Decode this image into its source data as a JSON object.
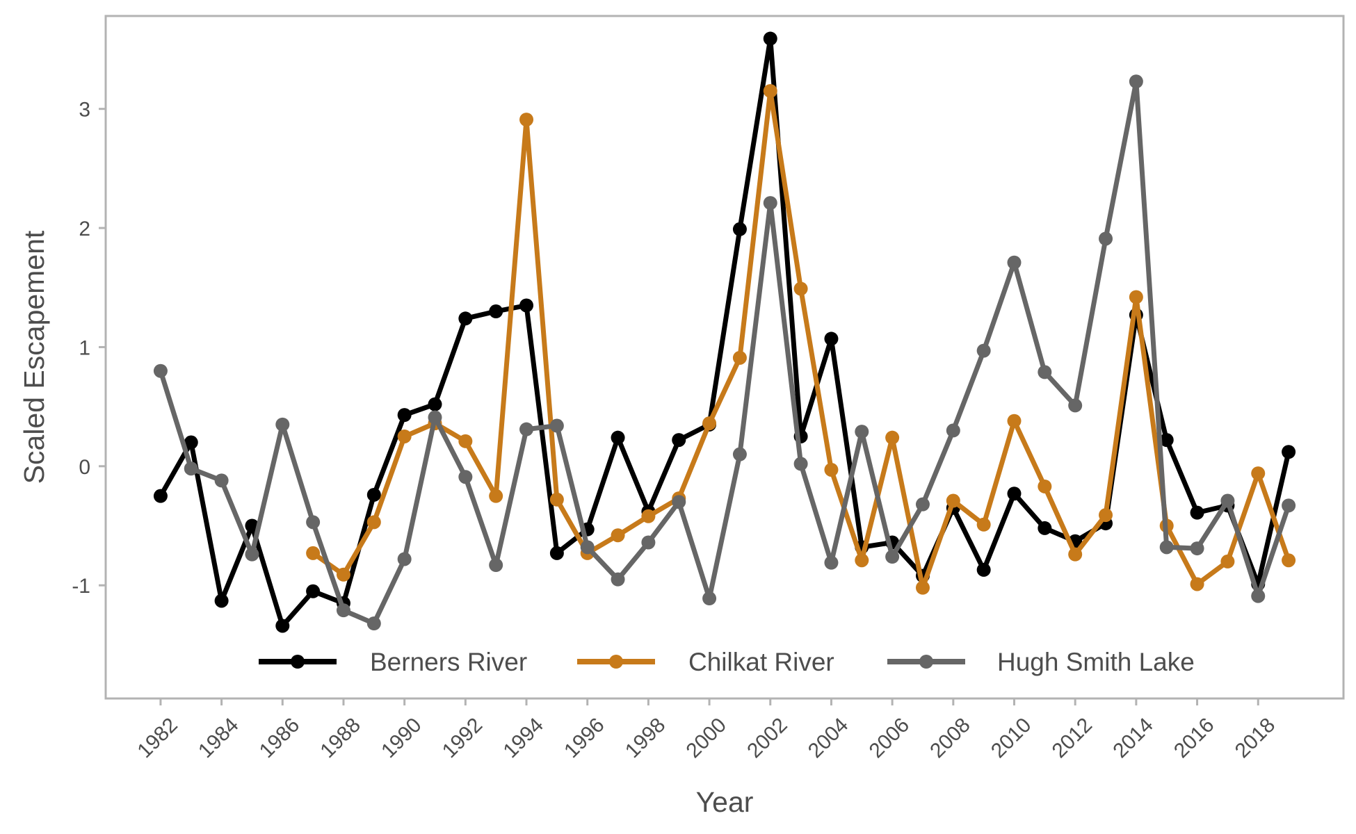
{
  "chart_data": {
    "type": "line",
    "title": "",
    "xlabel": "Year",
    "ylabel": "Scaled Escapement",
    "xlim": [
      1980.2,
      2020.8
    ],
    "ylim": [
      -1.95,
      3.78
    ],
    "x": [
      1982,
      1983,
      1984,
      1985,
      1986,
      1987,
      1988,
      1989,
      1990,
      1991,
      1992,
      1993,
      1994,
      1995,
      1996,
      1997,
      1998,
      1999,
      2000,
      2001,
      2002,
      2003,
      2004,
      2005,
      2006,
      2007,
      2008,
      2009,
      2010,
      2011,
      2012,
      2013,
      2014,
      2015,
      2016,
      2017,
      2018,
      2019
    ],
    "x_ticks": [
      1982,
      1984,
      1986,
      1988,
      1990,
      1992,
      1994,
      1996,
      1998,
      2000,
      2002,
      2004,
      2006,
      2008,
      2010,
      2012,
      2014,
      2016,
      2018
    ],
    "y_ticks": [
      -1,
      0,
      1,
      2,
      3
    ],
    "grid": false,
    "legend_position": "bottom-inside",
    "series": [
      {
        "name": "Berners River",
        "color": "#000000",
        "values": [
          -0.25,
          0.2,
          -1.13,
          -0.5,
          -1.34,
          -1.05,
          -1.15,
          -0.24,
          0.43,
          0.52,
          1.24,
          1.3,
          1.35,
          -0.73,
          -0.53,
          0.24,
          -0.38,
          0.22,
          0.35,
          1.99,
          3.59,
          0.25,
          1.07,
          -0.68,
          -0.64,
          -0.92,
          -0.35,
          -0.87,
          -0.23,
          -0.52,
          -0.63,
          -0.48,
          1.27,
          0.22,
          -0.39,
          -0.33,
          -0.99,
          0.12
        ]
      },
      {
        "name": "Chilkat River",
        "color": "#c77a1a",
        "values": [
          null,
          null,
          null,
          null,
          null,
          -0.73,
          -0.91,
          -0.47,
          0.25,
          0.36,
          0.21,
          -0.25,
          2.91,
          -0.28,
          -0.73,
          -0.58,
          -0.42,
          -0.27,
          0.36,
          0.91,
          3.15,
          1.49,
          -0.03,
          -0.79,
          0.24,
          -1.02,
          -0.29,
          -0.49,
          0.38,
          -0.17,
          -0.74,
          -0.41,
          1.42,
          -0.5,
          -0.99,
          -0.8,
          -0.06,
          -0.79
        ]
      },
      {
        "name": "Hugh Smith Lake",
        "color": "#666666",
        "values": [
          0.8,
          -0.02,
          -0.12,
          -0.74,
          0.35,
          -0.47,
          -1.21,
          -1.32,
          -0.78,
          0.41,
          -0.09,
          -0.83,
          0.31,
          0.34,
          -0.68,
          -0.95,
          -0.64,
          -0.3,
          -1.11,
          0.1,
          2.21,
          0.02,
          -0.81,
          0.29,
          -0.76,
          -0.32,
          0.3,
          0.97,
          1.71,
          0.79,
          0.51,
          1.91,
          3.23,
          -0.68,
          -0.69,
          -0.29,
          -1.09,
          -0.33
        ]
      }
    ]
  }
}
